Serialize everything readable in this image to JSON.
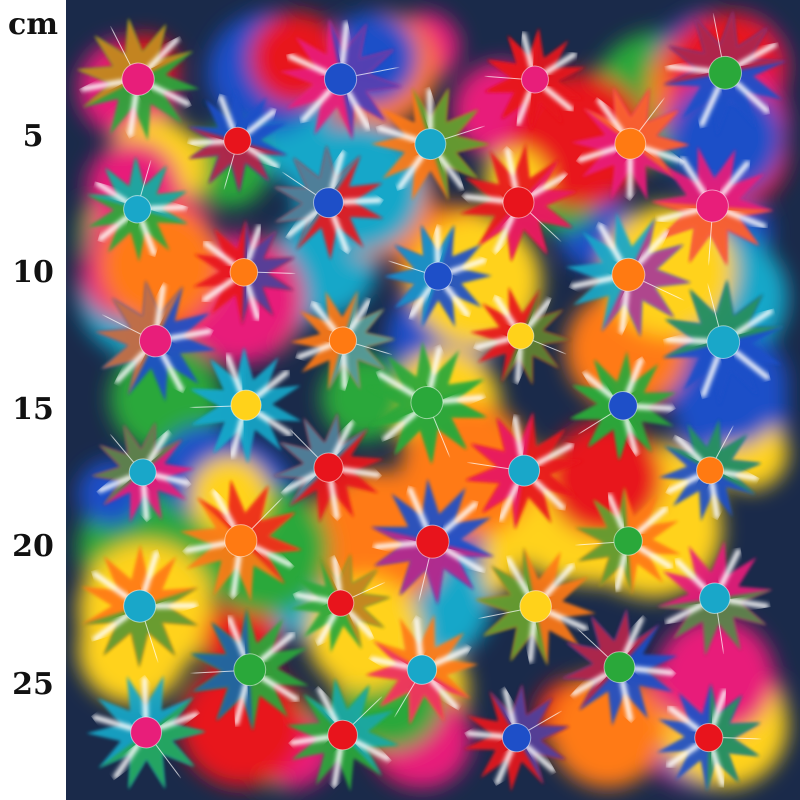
{
  "ruler": {
    "unit": "cm",
    "labels": [
      "5",
      "10",
      "15",
      "20",
      "25"
    ]
  },
  "fabric": {
    "pattern": "multicolor starburst print",
    "palette": [
      "#e8141c",
      "#1e4fc8",
      "#19a7c9",
      "#2aa83a",
      "#ffd21a",
      "#ff7a12",
      "#e81e7a",
      "#ffffff",
      "#101820"
    ]
  }
}
